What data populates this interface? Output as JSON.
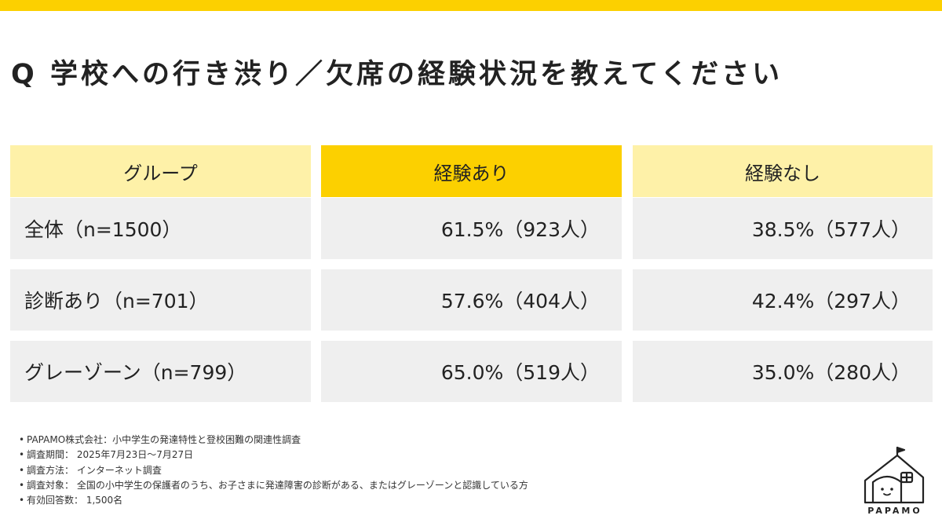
{
  "title": "Q 学校への行き渋り／欠席の経験状況を教えてください",
  "table": {
    "headers": [
      "グループ",
      "経験あり",
      "経験なし"
    ],
    "rows": [
      {
        "group": "全体（n=1500）",
        "yes": "61.5%（923人）",
        "no": "38.5%（577人）"
      },
      {
        "group": "診断あり（n=701）",
        "yes": "57.6%（404人）",
        "no": "42.4%（297人）"
      },
      {
        "group": "グレーゾーン（n=799）",
        "yes": "65.0%（519人）",
        "no": "35.0%（280人）"
      }
    ]
  },
  "notes": [
    "PAPAMO株式会社：小中学生の発達特性と登校困難の関連性調査",
    "調査期間： 2025年7月23日〜7月27日",
    "調査方法： インターネット調査",
    "調査対象： 全国の小中学生の保護者のうち、お子さまに発達障害の診断がある、またはグレーゾーンと認識している方",
    "有効回答数： 1,500名"
  ],
  "logo": {
    "text": "PAPAMO",
    "icon": "house-icon"
  },
  "colors": {
    "accent": "#FCD000",
    "header_light": "#FEF1A8",
    "row_bg": "#EFEFEF"
  }
}
